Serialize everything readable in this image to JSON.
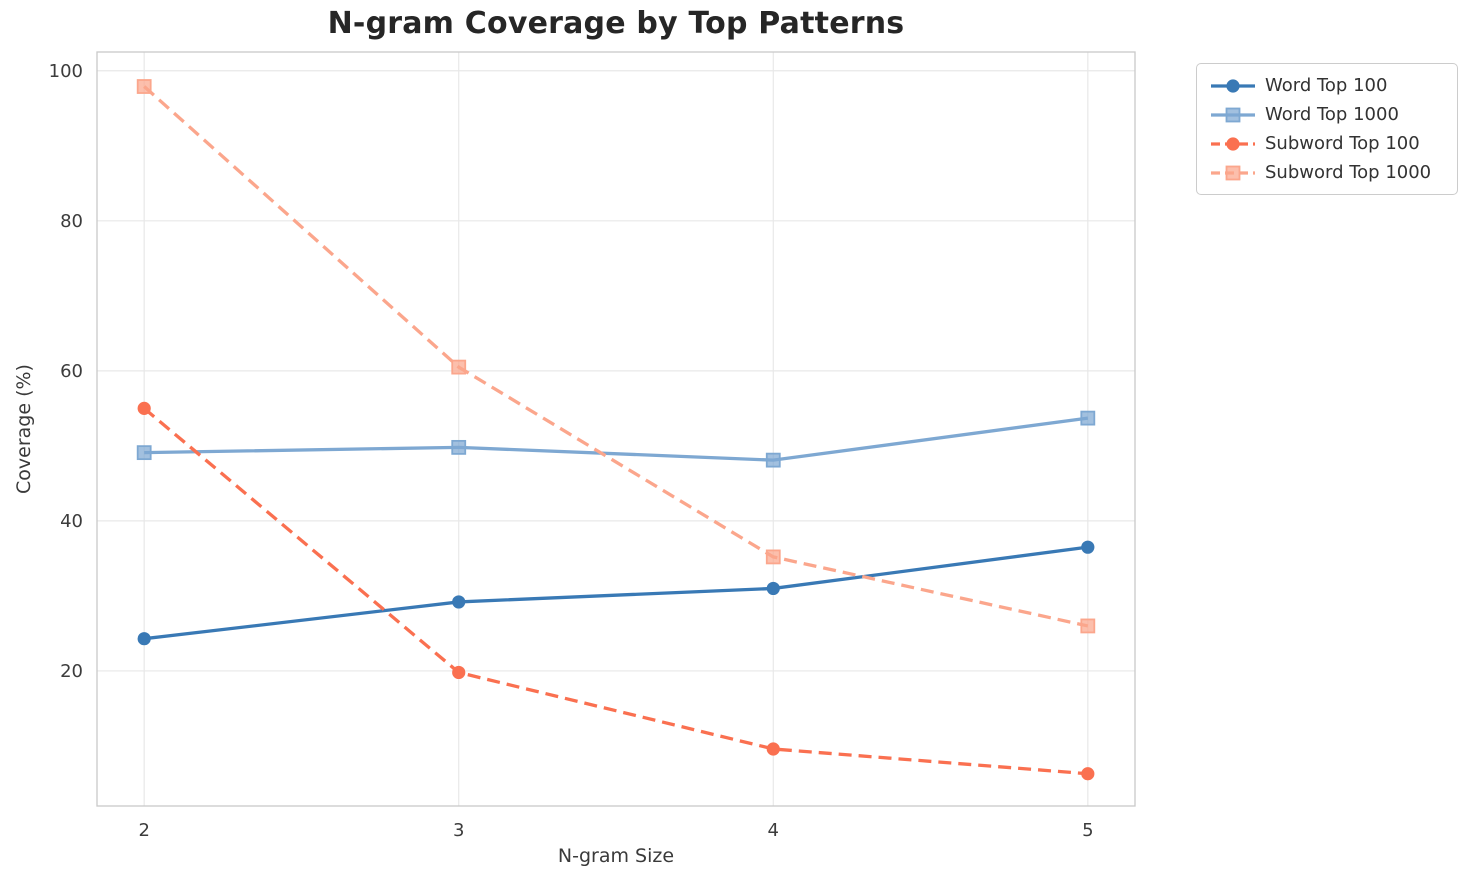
{
  "chart_data": {
    "type": "line",
    "title": "N-gram Coverage by Top Patterns",
    "xlabel": "N-gram Size",
    "ylabel": "Coverage (%)",
    "x": [
      2,
      3,
      4,
      5
    ],
    "xticks": [
      2,
      3,
      4,
      5
    ],
    "yticks": [
      20,
      40,
      60,
      80,
      100
    ],
    "xlim": [
      1.85,
      5.15
    ],
    "ylim": [
      2,
      102.5
    ],
    "grid": true,
    "legend_position": "outside-top-right",
    "colors": {
      "grid": "#e8e8e8",
      "spine": "#c9c9c9",
      "title_text": "#262626",
      "tick_text": "#3c3c3c",
      "axis_label_text": "#3a3a3a"
    },
    "series": [
      {
        "name": "Word Top 100",
        "values": [
          24.3,
          29.2,
          31.0,
          36.5
        ],
        "color": "#3979b5",
        "style": "solid",
        "marker": "circle"
      },
      {
        "name": "Word Top 1000",
        "values": [
          49.1,
          49.8,
          48.1,
          53.7
        ],
        "color": "#7ea8d2",
        "style": "solid",
        "marker": "square"
      },
      {
        "name": "Subword Top 100",
        "values": [
          55.0,
          19.8,
          9.6,
          6.3
        ],
        "color": "#fa7050",
        "style": "dashed",
        "marker": "circle"
      },
      {
        "name": "Subword Top 1000",
        "values": [
          97.9,
          60.5,
          35.2,
          26.0
        ],
        "color": "#fba68c",
        "style": "dashed",
        "marker": "square"
      }
    ]
  }
}
